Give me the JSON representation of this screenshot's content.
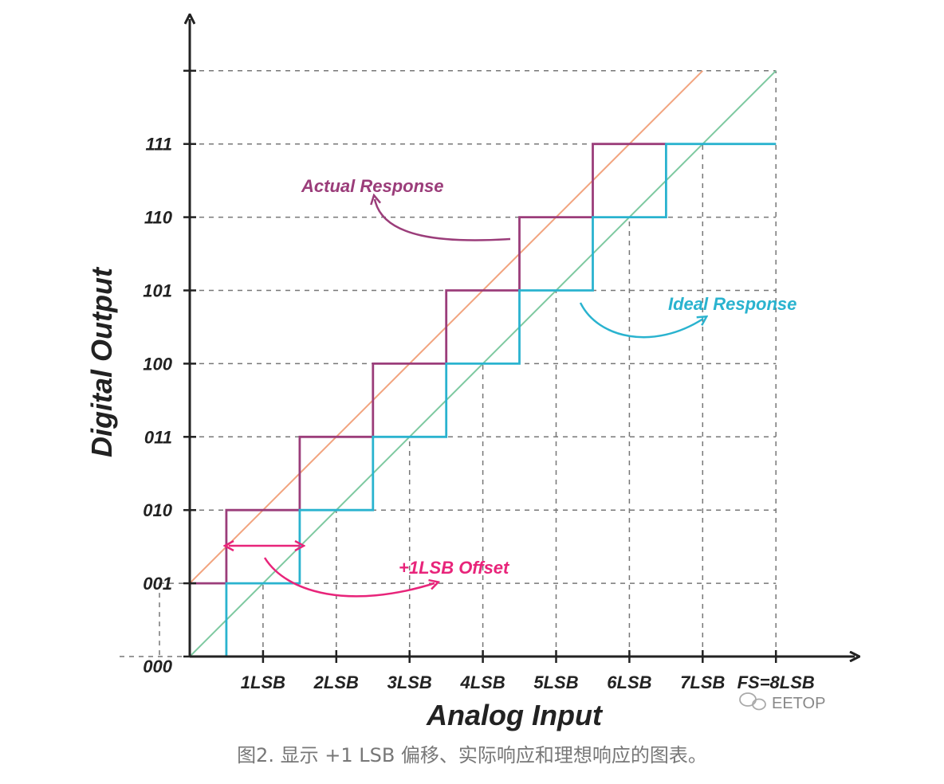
{
  "axes": {
    "x_label": "Analog Input",
    "y_label": "Digital Output"
  },
  "x_ticks": [
    "1LSB",
    "2LSB",
    "3LSB",
    "4LSB",
    "5LSB",
    "6LSB",
    "7LSB",
    "FS=8LSB"
  ],
  "y_ticks": [
    "000",
    "001",
    "010",
    "011",
    "100",
    "101",
    "110",
    "111"
  ],
  "annotations": {
    "actual": "Actual Response",
    "ideal": "Ideal Response",
    "offset": "+1LSB Offset"
  },
  "watermark": "EETOP",
  "caption": "图2. 显示 +1 LSB 偏移、实际响应和理想响应的图表。",
  "colors": {
    "actual": "#9b3d7a",
    "ideal": "#2ab3cf",
    "offset": "#e8247a",
    "ideal_line": "#7dc9a0",
    "actual_line": "#f2a47f"
  },
  "chart_data": {
    "type": "line",
    "xlim": [
      0,
      8
    ],
    "ylim": [
      0,
      8
    ],
    "series": [
      {
        "name": "Actual Response",
        "style": "step",
        "x": [
          0,
          0.5,
          0.5,
          1.5,
          1.5,
          2.5,
          2.5,
          3.5,
          3.5,
          4.5,
          4.5,
          5.5,
          5.5,
          6.5
        ],
        "y": [
          1,
          1,
          2,
          2,
          3,
          3,
          4,
          4,
          5,
          5,
          6,
          6,
          7,
          7
        ]
      },
      {
        "name": "Ideal Response",
        "style": "step",
        "x": [
          0,
          0.5,
          0.5,
          1.5,
          1.5,
          2.5,
          2.5,
          3.5,
          3.5,
          4.5,
          4.5,
          5.5,
          5.5,
          6.5,
          6.5,
          8
        ],
        "y": [
          0,
          0,
          1,
          1,
          2,
          2,
          3,
          3,
          4,
          4,
          5,
          5,
          6,
          6,
          7,
          7
        ]
      },
      {
        "style": "line",
        "x": [
          0,
          7
        ],
        "y": [
          1,
          8
        ]
      },
      {
        "style": "line",
        "x": [
          0,
          8
        ],
        "y": [
          0,
          8
        ]
      }
    ],
    "offset_lsb": 1
  }
}
